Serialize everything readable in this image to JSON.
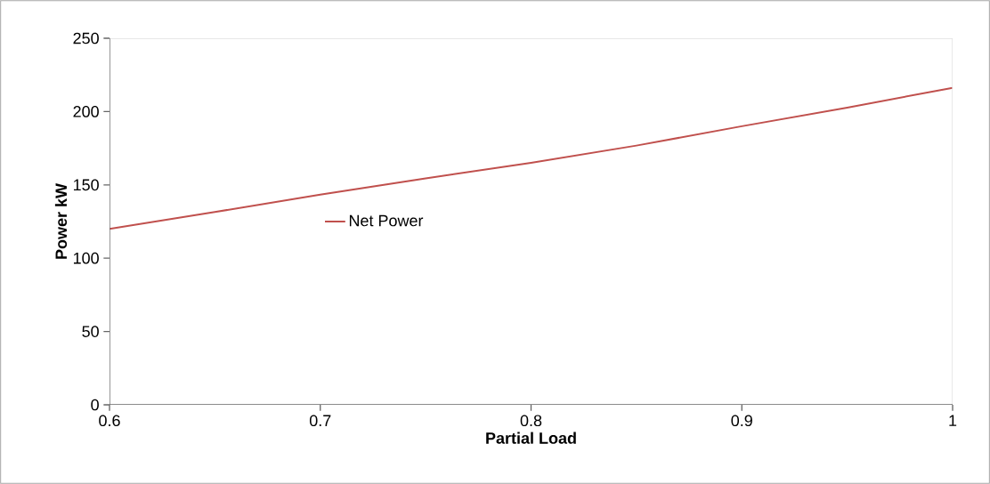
{
  "chart_data": {
    "type": "line",
    "xlabel": "Partial Load",
    "ylabel": "Power kW",
    "x": [
      0.6,
      0.65,
      0.7,
      0.75,
      0.8,
      0.85,
      0.9,
      0.95,
      1.0
    ],
    "series": [
      {
        "name": "Net Power",
        "color": "#c0504d",
        "values": [
          120,
          131.5,
          143.4,
          154.5,
          165,
          176.8,
          190,
          202.7,
          216.2
        ]
      }
    ],
    "xlim": [
      0.6,
      1
    ],
    "ylim": [
      0,
      250
    ],
    "xticks": [
      0.6,
      0.7,
      0.8,
      0.9,
      1
    ],
    "yticks": [
      0,
      50,
      100,
      150,
      200,
      250
    ],
    "legend": "left",
    "grid": false,
    "marker": "none",
    "line_style": "solid"
  }
}
